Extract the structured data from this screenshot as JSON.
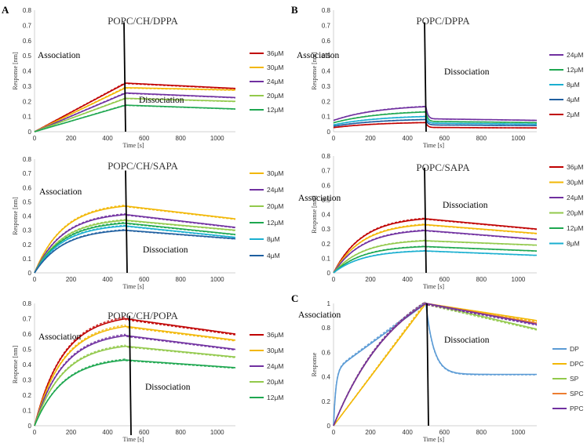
{
  "colors": {
    "red": "#C00000",
    "orange_yellow": "#F2B705",
    "purple": "#7030A0",
    "light_green": "#92C94B",
    "green": "#1EA750",
    "cyan": "#1AAFD0",
    "dark_blue": "#1F5FA0",
    "light_blue": "#5B9BD5",
    "orange": "#ED7D31",
    "axis": "#D0D0D0",
    "divider": "#000000"
  },
  "chart_data": [
    {
      "id": "A1",
      "panel_letter": "A",
      "type": "line",
      "title": "POPC/CH/DPPA",
      "xlabel": "Time [s]",
      "ylabel": "Response [nm]",
      "xlim": [
        0,
        1100
      ],
      "ylim": [
        0,
        0.8
      ],
      "xticks": [
        "0",
        "200",
        "400",
        "600",
        "800",
        "1000"
      ],
      "yticks": [
        "0",
        "0.1",
        "0.2",
        "0.3",
        "0.4",
        "0.5",
        "0.6",
        "0.7",
        "0.8"
      ],
      "association_label": "Association",
      "dissociation_label": "Dissociation",
      "dissociation_start": 500,
      "divider_top": 0.72,
      "series": [
        {
          "name": "36μM",
          "color": "#C00000",
          "start": 0.32,
          "end": 0.285,
          "shape": "linear"
        },
        {
          "name": "30μM",
          "color": "#F2B705",
          "start": 0.29,
          "end": 0.275,
          "shape": "linear"
        },
        {
          "name": "24μM",
          "color": "#7030A0",
          "start": 0.255,
          "end": 0.225,
          "shape": "linear"
        },
        {
          "name": "20μM",
          "color": "#92C94B",
          "start": 0.22,
          "end": 0.2,
          "shape": "linear"
        },
        {
          "name": "12μM",
          "color": "#1EA750",
          "start": 0.175,
          "end": 0.15,
          "shape": "linear"
        }
      ]
    },
    {
      "id": "B1",
      "panel_letter": "B",
      "type": "line",
      "title": "POPC/DPPA",
      "xlabel": "Time [s]",
      "ylabel": "Response [nm]",
      "xlim": [
        0,
        1100
      ],
      "ylim": [
        0,
        0.8
      ],
      "xticks": [
        "0",
        "200",
        "400",
        "600",
        "800",
        "1000"
      ],
      "yticks": [
        "0",
        "0.1",
        "0.2",
        "0.3",
        "0.4",
        "0.5",
        "0.6",
        "0.7",
        "0.8"
      ],
      "association_label": "Association",
      "dissociation_label": "Dissociation",
      "dissociation_start": 500,
      "divider_top": 0.72,
      "series": [
        {
          "name": "24μM",
          "color": "#7030A0",
          "start": 0.165,
          "end": 0.075,
          "jump": 0.07,
          "shape": "fastdrop"
        },
        {
          "name": "12μM",
          "color": "#1EA750",
          "start": 0.13,
          "end": 0.06,
          "jump": 0.055,
          "shape": "fastdrop"
        },
        {
          "name": "8μM",
          "color": "#1AAFD0",
          "start": 0.1,
          "end": 0.05,
          "jump": 0.045,
          "shape": "fastdrop"
        },
        {
          "name": "4μM",
          "color": "#1F5FA0",
          "start": 0.08,
          "end": 0.04,
          "jump": 0.035,
          "shape": "fastdrop"
        },
        {
          "name": "2μM",
          "color": "#C00000",
          "start": 0.06,
          "end": 0.025,
          "jump": 0.02,
          "shape": "fastdrop"
        }
      ]
    },
    {
      "id": "A2",
      "panel_letter": "",
      "type": "line",
      "title": "POPC/CH/SAPA",
      "xlabel": "Time [s]",
      "ylabel": "Response [nm]",
      "xlim": [
        0,
        1100
      ],
      "ylim": [
        0,
        0.8
      ],
      "xticks": [
        "0",
        "200",
        "400",
        "600",
        "800",
        "1000"
      ],
      "yticks": [
        "0",
        "0.1",
        "0.2",
        "0.3",
        "0.4",
        "0.5",
        "0.6",
        "0.7",
        "0.8"
      ],
      "association_label": "Association",
      "dissociation_label": "Dissociation",
      "dissociation_start": 500,
      "divider_top": 0.72,
      "series": [
        {
          "name": "30μM",
          "color": "#F2B705",
          "start": 0.47,
          "end": 0.38,
          "shape": "exp"
        },
        {
          "name": "24μM",
          "color": "#7030A0",
          "start": 0.41,
          "end": 0.32,
          "shape": "exp"
        },
        {
          "name": "20μM",
          "color": "#92C94B",
          "start": 0.37,
          "end": 0.3,
          "shape": "exp"
        },
        {
          "name": "12μM",
          "color": "#1EA750",
          "start": 0.35,
          "end": 0.27,
          "shape": "exp"
        },
        {
          "name": "8μM",
          "color": "#1AAFD0",
          "start": 0.33,
          "end": 0.25,
          "shape": "exp"
        },
        {
          "name": "4μM",
          "color": "#1F5FA0",
          "start": 0.3,
          "end": 0.24,
          "shape": "exp"
        }
      ]
    },
    {
      "id": "B2",
      "panel_letter": "",
      "type": "line",
      "title": "POPC/SAPA",
      "xlabel": "Time [s]",
      "ylabel": "Response [nm]",
      "xlim": [
        0,
        1100
      ],
      "ylim": [
        0,
        0.8
      ],
      "xticks": [
        "0",
        "200",
        "400",
        "600",
        "800",
        "1000"
      ],
      "yticks": [
        "0",
        "0.1",
        "0.2",
        "0.3",
        "0.4",
        "0.5",
        "0.6",
        "0.7",
        "0.8"
      ],
      "association_label": "Association",
      "dissociation_label": "Dissociation",
      "dissociation_start": 500,
      "divider_top": 0.72,
      "series": [
        {
          "name": "36μM",
          "color": "#C00000",
          "start": 0.37,
          "end": 0.3,
          "shape": "exp"
        },
        {
          "name": "30μM",
          "color": "#F2B705",
          "start": 0.33,
          "end": 0.27,
          "shape": "exp"
        },
        {
          "name": "24μM",
          "color": "#7030A0",
          "start": 0.29,
          "end": 0.23,
          "shape": "exp"
        },
        {
          "name": "20μM",
          "color": "#92C94B",
          "start": 0.22,
          "end": 0.19,
          "shape": "exp"
        },
        {
          "name": "12μM",
          "color": "#1EA750",
          "start": 0.18,
          "end": 0.15,
          "shape": "exp"
        },
        {
          "name": "8μM",
          "color": "#1AAFD0",
          "start": 0.15,
          "end": 0.12,
          "shape": "exp"
        }
      ]
    },
    {
      "id": "A3",
      "panel_letter": "",
      "type": "line",
      "title": "POPC/CH/POPA",
      "xlabel": "Time [s]",
      "ylabel": "Response [nm]",
      "xlim": [
        0,
        1100
      ],
      "ylim": [
        0,
        0.8
      ],
      "xticks": [
        "0",
        "200",
        "400",
        "600",
        "800",
        "1000"
      ],
      "yticks": [
        "0",
        "0.1",
        "0.2",
        "0.3",
        "0.4",
        "0.5",
        "0.6",
        "0.7",
        "0.8"
      ],
      "association_label": "Association",
      "dissociation_label": "Dissociation",
      "dissociation_start": 500,
      "divider_top": 0.72,
      "series": [
        {
          "name": "36μM",
          "color": "#C00000",
          "start": 0.7,
          "end": 0.6,
          "shape": "exp"
        },
        {
          "name": "30μM",
          "color": "#F2B705",
          "start": 0.65,
          "end": 0.56,
          "shape": "exp"
        },
        {
          "name": "24μM",
          "color": "#7030A0",
          "start": 0.59,
          "end": 0.5,
          "shape": "exp"
        },
        {
          "name": "20μM",
          "color": "#92C94B",
          "start": 0.52,
          "end": 0.45,
          "shape": "exp"
        },
        {
          "name": "12μM",
          "color": "#1EA750",
          "start": 0.43,
          "end": 0.38,
          "shape": "exp"
        }
      ]
    },
    {
      "id": "C",
      "panel_letter": "C",
      "type": "line",
      "title": "",
      "xlabel": "Time [s]",
      "ylabel": "Response",
      "xlim": [
        0,
        1100
      ],
      "ylim": [
        0,
        1
      ],
      "xticks": [
        "0",
        "200",
        "400",
        "600",
        "800",
        "1000"
      ],
      "yticks": [
        "0",
        "0.2",
        "0.4",
        "0.6",
        "0.8",
        "1"
      ],
      "association_label": "Association",
      "dissociation_label": "Dissociation",
      "dissociation_start": 500,
      "divider_top": 1.0,
      "series": [
        {
          "name": "DP",
          "color": "#5B9BD5",
          "start": 1.0,
          "end": 0.42,
          "shape": "dp"
        },
        {
          "name": "DPC",
          "color": "#F2B705",
          "start": 1.0,
          "end": 0.86,
          "shape": "lin01"
        },
        {
          "name": "SP",
          "color": "#92C94B",
          "start": 1.0,
          "end": 0.79,
          "shape": "exp01"
        },
        {
          "name": "SPC",
          "color": "#ED7D31",
          "start": 1.0,
          "end": 0.84,
          "shape": "exp01"
        },
        {
          "name": "PPC",
          "color": "#7030A0",
          "start": 1.0,
          "end": 0.83,
          "shape": "exp01"
        }
      ]
    }
  ]
}
